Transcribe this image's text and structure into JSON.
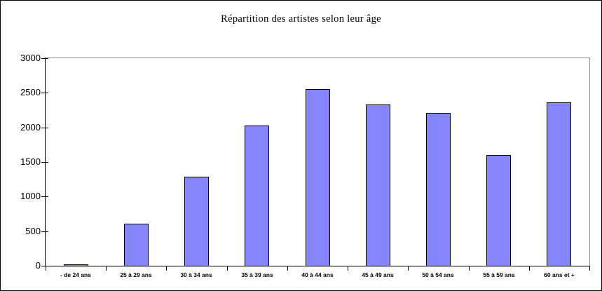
{
  "chart_data": {
    "type": "bar",
    "title": "Répartition des artistes selon leur âge",
    "categories": [
      "- de 24 ans",
      "25 à 29 ans",
      "30 à 34 ans",
      "35 à 39 ans",
      "40 à 44 ans",
      "45 à 49 ans",
      "50 à 54 ans",
      "55 à 59 ans",
      "60 ans et +"
    ],
    "values": [
      20,
      610,
      1290,
      2030,
      2550,
      2330,
      2210,
      1600,
      2360
    ],
    "xlabel": "",
    "ylabel": "",
    "ylim": [
      0,
      3000
    ],
    "yticks": [
      0,
      500,
      1000,
      1500,
      2000,
      2500,
      3000
    ],
    "grid": false,
    "legend": "none",
    "colors": {
      "bar_fill": "#8585FC",
      "bar_border": "#000000",
      "axis_line": "#000000",
      "plot_border": "#8C8C8C",
      "background": "#FFFFFF",
      "text": "#000000"
    }
  }
}
